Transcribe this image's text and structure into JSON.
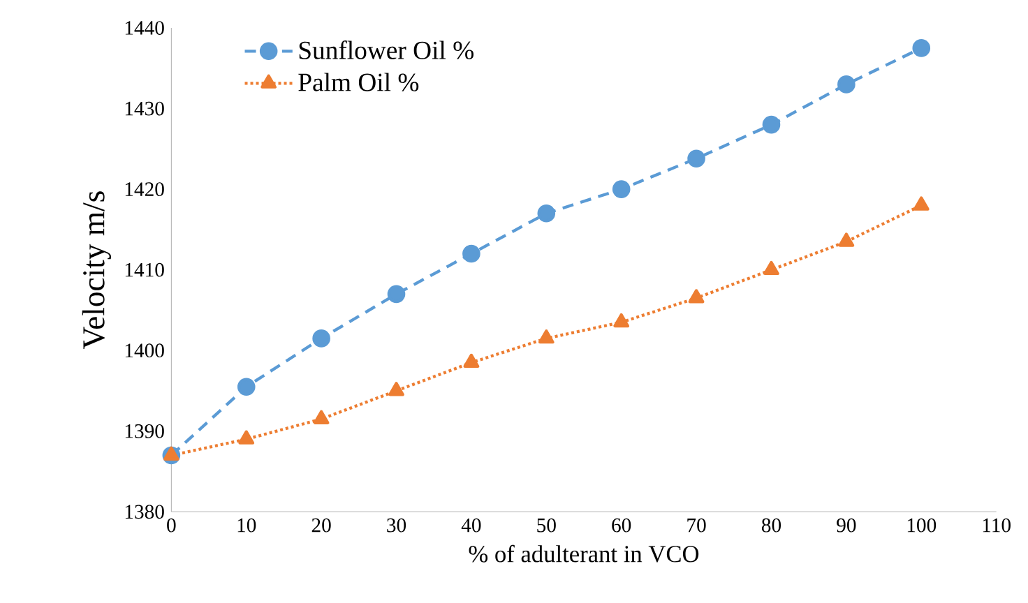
{
  "chart_data": {
    "type": "line",
    "xlabel": "% of adulterant in VCO",
    "ylabel": "Velocity m/s",
    "x": [
      0,
      10,
      20,
      30,
      40,
      50,
      60,
      70,
      80,
      90,
      100
    ],
    "series": [
      {
        "name": "Sunflower Oil %",
        "color": "#5b9bd5",
        "marker": "circle",
        "line_style": "dashed",
        "values": [
          1387,
          1395.5,
          1401.5,
          1407,
          1412,
          1417,
          1420,
          1423.8,
          1428,
          1433,
          1437.5
        ]
      },
      {
        "name": "Palm Oil %",
        "color": "#ed7d31",
        "marker": "triangle",
        "line_style": "dotted",
        "values": [
          1387,
          1389,
          1391.5,
          1395,
          1398.5,
          1401.5,
          1403.5,
          1406.5,
          1410,
          1413.5,
          1418
        ]
      }
    ],
    "xlim": [
      0,
      110
    ],
    "xticks": [
      0,
      10,
      20,
      30,
      40,
      50,
      60,
      70,
      80,
      90,
      100,
      110
    ],
    "ylim": [
      1380,
      1440
    ],
    "yticks": [
      1380,
      1390,
      1400,
      1410,
      1420,
      1430,
      1440
    ],
    "grid": false,
    "legend": "top left"
  }
}
